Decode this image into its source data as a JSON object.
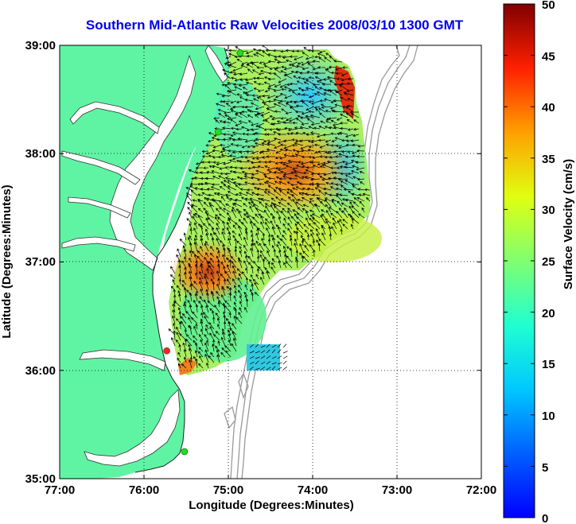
{
  "title": "Southern Mid-Atlantic Raw Velocities 2008/03/10 1300 GMT",
  "map": {
    "xlabel": "Longitude (Degrees:Minutes)",
    "ylabel": "Latitude (Degrees:Minutes)",
    "lon_range": [
      -77,
      -72
    ],
    "lat_range": [
      35,
      39
    ],
    "x_ticks": [
      "77:00",
      "76:00",
      "75:00",
      "74:00",
      "73:00",
      "72:00"
    ],
    "y_ticks": [
      "39:00",
      "38:00",
      "37:00",
      "36:00",
      "35:00"
    ],
    "grid": "dotted",
    "colors": {
      "land": "#5ff4a4",
      "water": "#ffffff",
      "bathymetry": "#999999",
      "arrows": "#000000",
      "site_active": "#22dd22",
      "site_inactive": "#ff2222"
    }
  },
  "colorbar": {
    "label": "Surface Velocity (cm/s)",
    "range": [
      0,
      50
    ],
    "ticks": [
      "0",
      "5",
      "10",
      "15",
      "20",
      "25",
      "30",
      "35",
      "40",
      "45",
      "50"
    ],
    "colormap": "jet"
  },
  "radar_sites": [
    {
      "lon": -74.86,
      "lat": 38.93,
      "status": "active"
    },
    {
      "lon": -75.12,
      "lat": 38.2,
      "status": "active"
    },
    {
      "lon": -75.73,
      "lat": 36.18,
      "status": "inactive"
    },
    {
      "lon": -75.52,
      "lat": 35.25,
      "status": "active"
    }
  ]
}
